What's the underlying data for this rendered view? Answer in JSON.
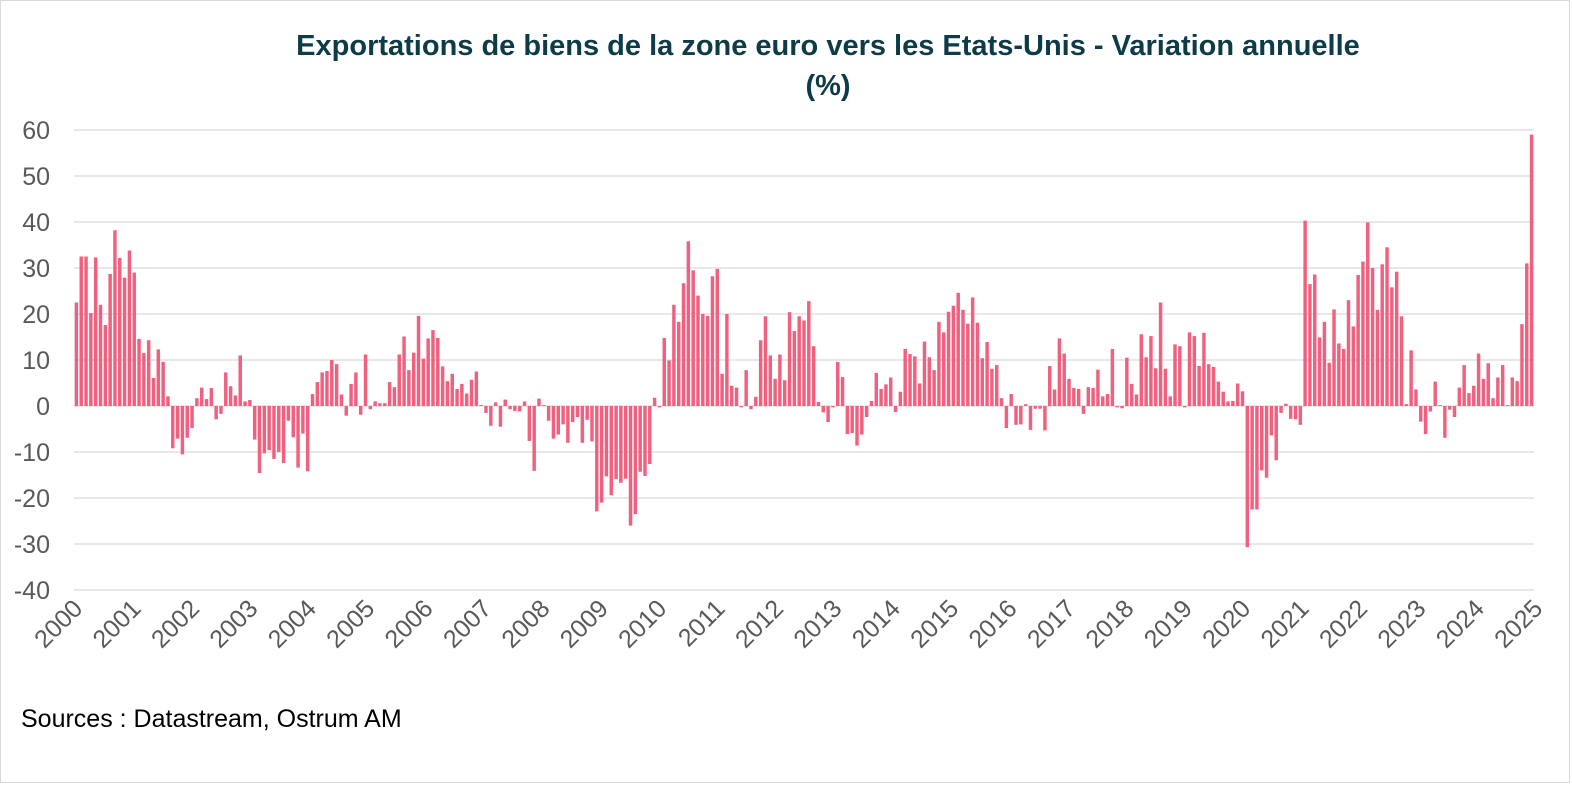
{
  "chart_data": {
    "type": "bar",
    "title": "Exportations de biens de la zone euro vers les Etats-Unis - Variation annuelle",
    "subtitle": "(%)",
    "xlabel": "",
    "ylabel": "",
    "ylim": [
      -40,
      60
    ],
    "y_ticks": [
      "60",
      "50",
      "40",
      "30",
      "20",
      "10",
      "0",
      "-10",
      "-20",
      "-30",
      "-40"
    ],
    "x_tick_labels": [
      "2000",
      "2001",
      "2002",
      "2003",
      "2004",
      "2005",
      "2006",
      "2007",
      "2008",
      "2009",
      "2010",
      "2011",
      "2012",
      "2013",
      "2014",
      "2015",
      "2016",
      "2017",
      "2018",
      "2019",
      "2020",
      "2021",
      "2022",
      "2023",
      "2024",
      "2025"
    ],
    "grid": true,
    "legend": "none",
    "bar_color": "#f0617f",
    "frequency": "monthly",
    "start": "2000-01",
    "end": "2025-03",
    "values": [
      22.5,
      32.5,
      32.5,
      20.2,
      32.3,
      22.0,
      17.6,
      28.7,
      38.2,
      32.2,
      27.9,
      33.8,
      29.0,
      14.6,
      11.5,
      14.3,
      6.1,
      12.3,
      9.6,
      2.1,
      -9.2,
      -7.1,
      -10.5,
      -6.9,
      -4.8,
      1.7,
      4.0,
      1.5,
      3.9,
      -2.9,
      -1.7,
      7.3,
      4.3,
      2.3,
      11.0,
      1.0,
      1.3,
      -7.3,
      -14.6,
      -10.3,
      -9.6,
      -11.5,
      -10.0,
      -12.4,
      -3.2,
      -6.8,
      -13.4,
      -6.0,
      -14.2,
      2.6,
      5.2,
      7.3,
      7.6,
      10.0,
      9.1,
      2.5,
      -2.1,
      4.8,
      7.3,
      -1.9,
      11.2,
      -0.7,
      1.0,
      0.6,
      0.6,
      5.2,
      4.1,
      11.2,
      15.1,
      7.8,
      11.6,
      19.6,
      10.3,
      14.7,
      16.5,
      14.8,
      8.6,
      5.4,
      7.0,
      3.7,
      4.8,
      2.7,
      5.7,
      7.5,
      0.2,
      -1.5,
      -4.3,
      0.8,
      -4.5,
      1.4,
      -0.7,
      -1.1,
      -1.2,
      1.0,
      -7.6,
      -14.1,
      1.6,
      0.2,
      -3.2,
      -7.1,
      -6.2,
      -4.0,
      -8.0,
      -3.5,
      -2.4,
      -8.0,
      -3.0,
      -7.7,
      -22.9,
      -21.0,
      -15.3,
      -19.4,
      -15.9,
      -16.7,
      -15.8,
      -26.0,
      -23.5,
      -14.3,
      -15.2,
      -12.6,
      1.8,
      -0.3,
      14.8,
      9.9,
      22.0,
      18.3,
      26.7,
      35.8,
      29.5,
      24.0,
      20.0,
      19.6,
      28.2,
      29.8,
      7.0,
      20.0,
      4.4,
      4.0,
      -0.3,
      7.8,
      -0.7,
      2.0,
      14.3,
      19.5,
      11.0,
      5.9,
      11.2,
      5.6,
      20.4,
      16.3,
      19.5,
      18.6,
      22.8,
      13.0,
      0.9,
      -1.4,
      -3.5,
      -0.3,
      9.6,
      6.3,
      -6.1,
      -5.9,
      -8.6,
      -6.2,
      -2.4,
      1.1,
      7.2,
      3.7,
      4.7,
      6.2,
      -1.3,
      3.1,
      12.4,
      11.3,
      10.8,
      4.9,
      14.0,
      10.6,
      7.8,
      18.3,
      16.0,
      20.5,
      21.8,
      24.6,
      20.9,
      17.9,
      23.6,
      18.1,
      10.4,
      13.9,
      8.1,
      8.9,
      1.7,
      -4.8,
      2.6,
      -4.1,
      -4.0,
      0.4,
      -5.2,
      -0.6,
      -0.6,
      -5.3,
      8.7,
      3.6,
      14.7,
      11.4,
      5.9,
      3.9,
      3.7,
      -1.7,
      4.1,
      3.9,
      7.9,
      2.1,
      2.6,
      12.4,
      -0.3,
      -0.5,
      10.5,
      4.8,
      2.5,
      15.6,
      10.6,
      15.2,
      8.2,
      22.5,
      8.1,
      2.1,
      13.4,
      13.0,
      -0.3,
      16.0,
      15.2,
      8.7,
      15.9,
      9.1,
      8.5,
      5.3,
      3.1,
      1.0,
      1.1,
      4.9,
      3.2,
      -30.7,
      -22.5,
      -22.5,
      -14.0,
      -15.6,
      -6.4,
      -11.8,
      -1.5,
      0.5,
      -2.8,
      -2.9,
      -4.1,
      40.3,
      26.5,
      28.6,
      14.9,
      18.3,
      9.4,
      21.0,
      13.6,
      12.4,
      23.0,
      17.3,
      28.5,
      31.4,
      39.9,
      30.0,
      20.9,
      30.8,
      34.5,
      25.8,
      29.2,
      19.5,
      0.4,
      12.1,
      3.6,
      -3.4,
      -6.1,
      -1.2,
      5.3,
      0.2,
      -6.9,
      -0.8,
      -2.4,
      4.0,
      8.9,
      2.8,
      4.4,
      11.4,
      5.9,
      9.3,
      1.7,
      6.2,
      8.9,
      0.2,
      6.2,
      5.4,
      17.8,
      31.0,
      59.0
    ]
  },
  "footer": {
    "source": "Sources : Datastream, Ostrum AM"
  }
}
